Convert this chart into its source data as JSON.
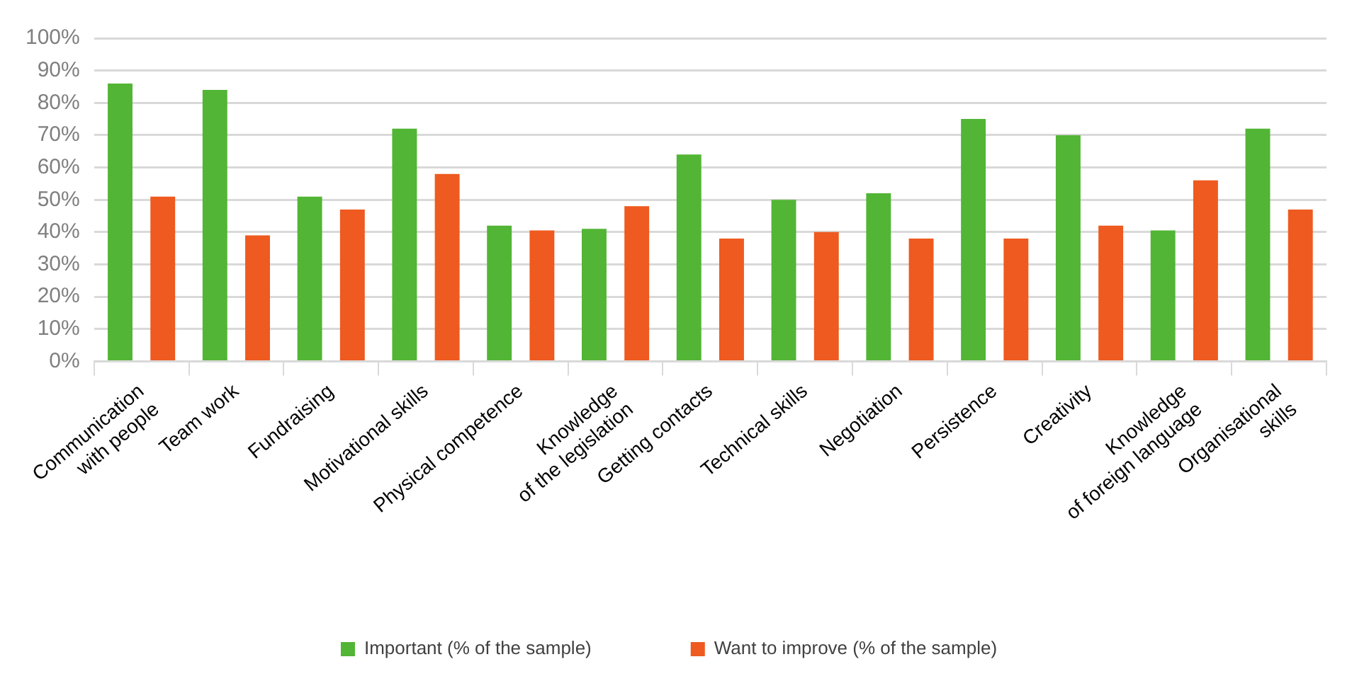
{
  "chart_data": {
    "type": "bar",
    "categories": [
      "Communication\nwith people",
      "Team work",
      "Fundraising",
      "Motivational skills",
      "Physical competence",
      "Knowledge\nof the legislation",
      "Getting contacts",
      "Technical skills",
      "Negotiation",
      "Persistence",
      "Creativity",
      "Knowledge\nof foreign language",
      "Organisational\nskills"
    ],
    "series": [
      {
        "name": "Important (% of the sample)",
        "color": "#52b535",
        "values": [
          86,
          84,
          51,
          72,
          42,
          41,
          64,
          50,
          52,
          75,
          70,
          40.5,
          72
        ]
      },
      {
        "name": "Want to improve (% of the sample)",
        "color": "#ee5a1f",
        "values": [
          51,
          39,
          47,
          58,
          40.5,
          48,
          38,
          40,
          38,
          38,
          42,
          56,
          47
        ]
      }
    ],
    "ylim": [
      0,
      100
    ],
    "yticks": [
      {
        "value": 0,
        "label": "0%"
      },
      {
        "value": 10,
        "label": "10%"
      },
      {
        "value": 20,
        "label": "20%"
      },
      {
        "value": 30,
        "label": "30%"
      },
      {
        "value": 40,
        "label": "40%"
      },
      {
        "value": 50,
        "label": "50%"
      },
      {
        "value": 60,
        "label": "60%"
      },
      {
        "value": 70,
        "label": "70%"
      },
      {
        "value": 80,
        "label": "80%"
      },
      {
        "value": 90,
        "label": "90%"
      },
      {
        "value": 100,
        "label": "100%"
      }
    ],
    "grid": "y",
    "legend": "bottom"
  }
}
